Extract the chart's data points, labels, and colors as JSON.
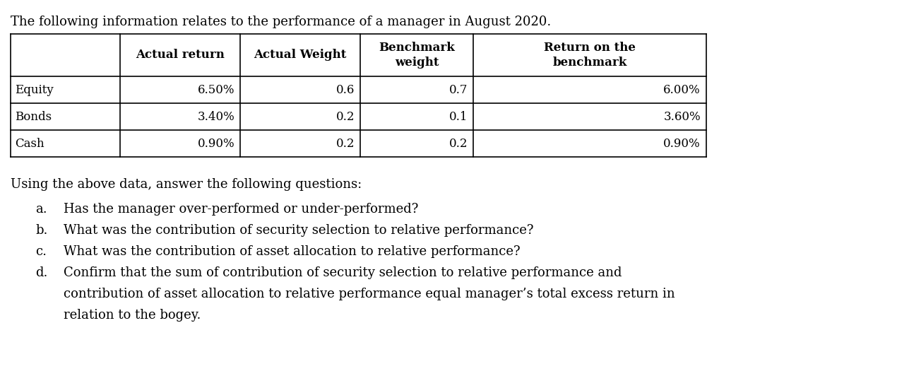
{
  "title": "The following information relates to the performance of a manager in August 2020.",
  "col_headers_line1": [
    "",
    "Actual return",
    "Actual Weight",
    "Benchmark",
    "Return on the"
  ],
  "col_headers_line2": [
    "",
    "",
    "",
    "weight",
    "benchmark"
  ],
  "rows": [
    [
      "Equity",
      "6.50%",
      "0.6",
      "0.7",
      "6.00%"
    ],
    [
      "Bonds",
      "3.40%",
      "0.2",
      "0.1",
      "3.60%"
    ],
    [
      "Cash",
      "0.90%",
      "0.2",
      "0.2",
      "0.90%"
    ]
  ],
  "questions_intro": "Using the above data, answer the following questions:",
  "questions": [
    "Has the manager over-performed or under-performed?",
    "What was the contribution of security selection to relative performance?",
    "What was the contribution of asset allocation to relative performance?",
    "Confirm that the sum of contribution of security selection to relative performance and",
    "contribution of asset allocation to relative performance equal manager’s total excess return in",
    "relation to the bogey."
  ],
  "question_labels": [
    "a.",
    "b.",
    "c.",
    "d.",
    "",
    ""
  ],
  "question_indents": [
    false,
    false,
    false,
    false,
    true,
    true
  ],
  "bg_color": "#ffffff",
  "text_color": "#000000",
  "font_size_title": 13,
  "font_size_table": 12,
  "font_size_questions": 13
}
